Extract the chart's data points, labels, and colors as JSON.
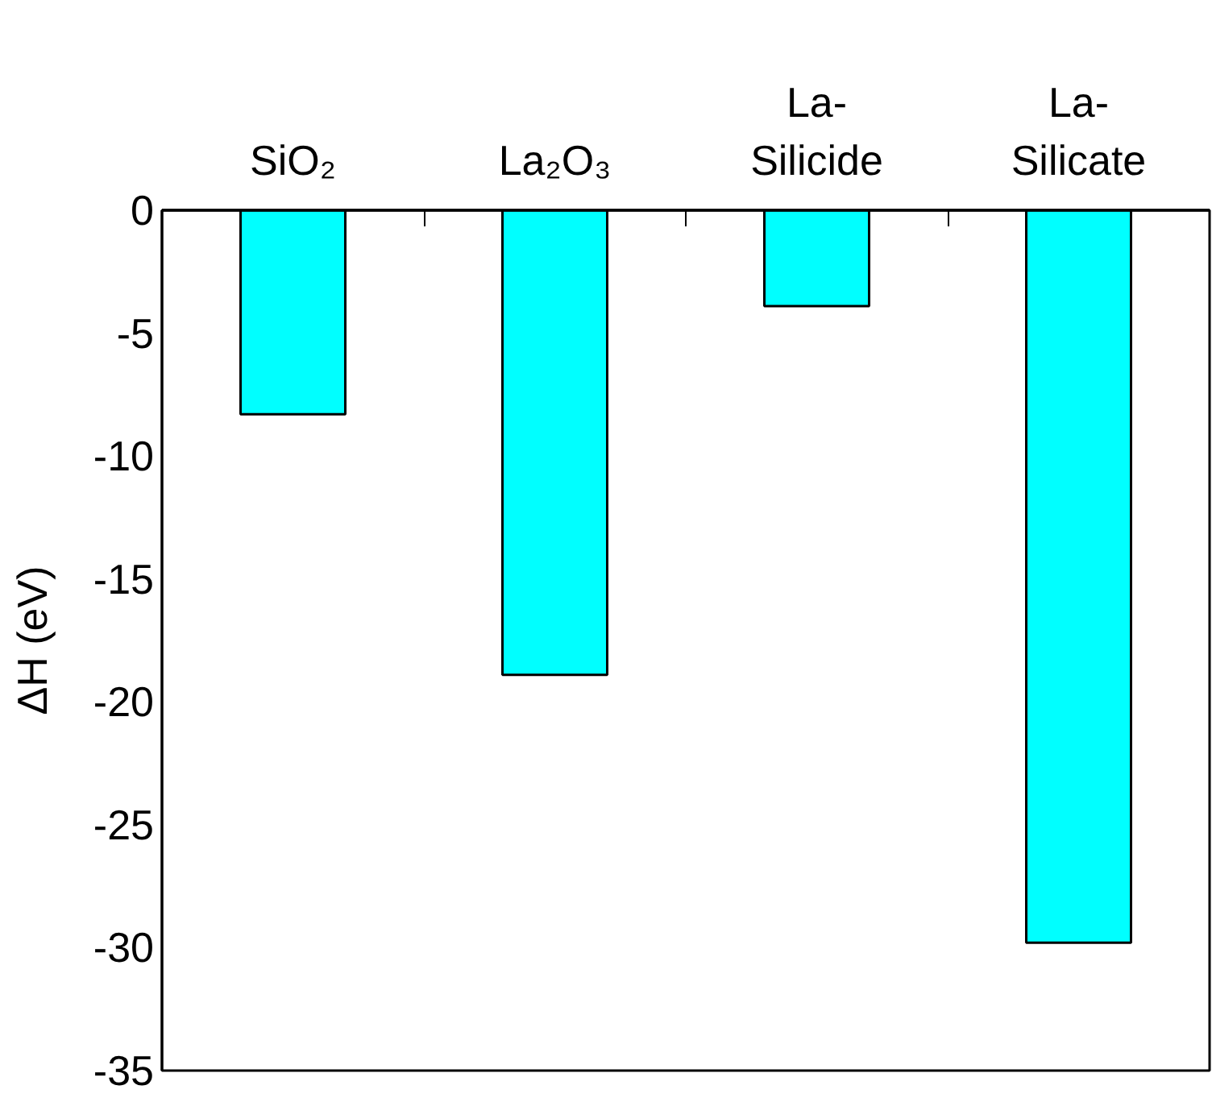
{
  "chart_data": {
    "type": "bar",
    "ylabel": "ΔH (eV)",
    "categories": [
      "SiO₂",
      "La₂O₃",
      "La-\nSilicide",
      "La-\nSilicate"
    ],
    "values": [
      -8.3,
      -18.9,
      -3.9,
      -29.8
    ],
    "color": "#00ffff",
    "ylim": [
      -35,
      0
    ],
    "yticks": [
      0,
      -5,
      -10,
      -15,
      -20,
      -25,
      -30,
      -35
    ],
    "grid": false
  }
}
